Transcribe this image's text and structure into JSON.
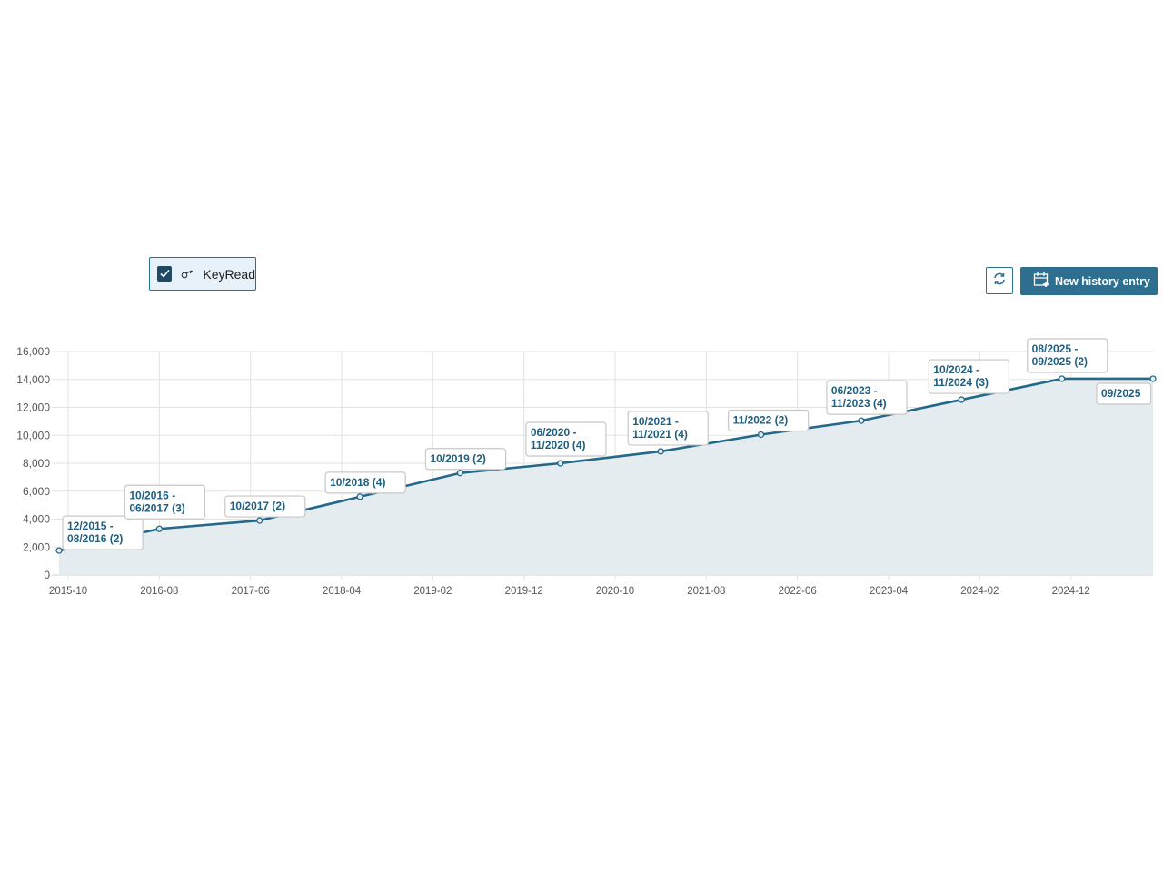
{
  "filter": {
    "label": "KeyRead",
    "checked": true,
    "icon": "key-icon"
  },
  "toolbar": {
    "refresh_icon": "refresh-icon",
    "new_entry_label": "New history entry",
    "new_entry_icon": "calendar-plus-icon"
  },
  "chart_data": {
    "type": "area",
    "title": "",
    "xlabel": "",
    "ylabel": "",
    "ylim": [
      0,
      16000
    ],
    "yticks": [
      0,
      2000,
      4000,
      6000,
      8000,
      10000,
      12000,
      14000,
      16000
    ],
    "ytick_labels": [
      "0",
      "2,000",
      "4,000",
      "6,000",
      "8,000",
      "10,000",
      "12,000",
      "14,000",
      "16,000"
    ],
    "xlim": [
      "2015-09",
      "2025-09"
    ],
    "xtick_labels": [
      "2015-10",
      "2016-08",
      "2017-06",
      "2018-04",
      "2019-02",
      "2019-12",
      "2020-10",
      "2021-08",
      "2022-06",
      "2023-04",
      "2024-02",
      "2024-12"
    ],
    "grid": true,
    "color": "#24698a",
    "fill": "#e4ecef",
    "points": [
      {
        "x": "2015-09",
        "y": 1750,
        "label": [
          "12/2015 -",
          "08/2016 (2)"
        ]
      },
      {
        "x": "2016-08",
        "y": 3300,
        "label": [
          "10/2016 -",
          "06/2017 (3)"
        ]
      },
      {
        "x": "2017-07",
        "y": 3900,
        "label": [
          "10/2017 (2)"
        ]
      },
      {
        "x": "2018-06",
        "y": 5600,
        "label": [
          "10/2018 (4)"
        ]
      },
      {
        "x": "2019-05",
        "y": 7300,
        "label": [
          "10/2019 (2)"
        ]
      },
      {
        "x": "2020-04",
        "y": 8000,
        "label": [
          "06/2020 -",
          "11/2020 (4)"
        ]
      },
      {
        "x": "2021-03",
        "y": 8850,
        "label": [
          "10/2021 -",
          "11/2021 (4)"
        ]
      },
      {
        "x": "2022-02",
        "y": 10050,
        "label": [
          "11/2022 (2)"
        ]
      },
      {
        "x": "2023-01",
        "y": 11050,
        "label": [
          "06/2023 -",
          "11/2023 (4)"
        ]
      },
      {
        "x": "2023-12",
        "y": 12550,
        "label": [
          "10/2024 -",
          "11/2024 (3)"
        ]
      },
      {
        "x": "2024-11",
        "y": 14050,
        "label": [
          "08/2025 -",
          "09/2025 (2)"
        ]
      },
      {
        "x": "2025-09",
        "y": 14050,
        "label": [
          "09/2025"
        ]
      }
    ]
  }
}
